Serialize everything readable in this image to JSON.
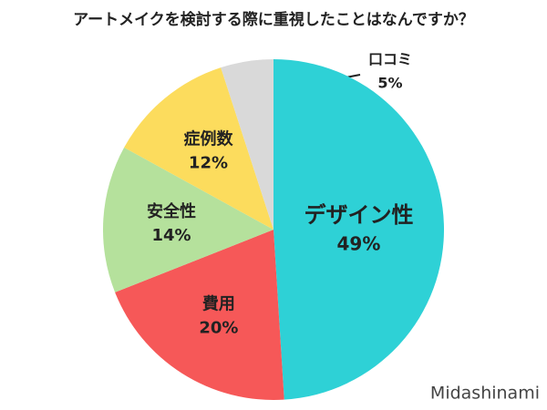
{
  "chart_data": {
    "type": "pie",
    "title": "アートメイクを検討する際に重視したことはなんですか？",
    "categories": [
      "デザイン性",
      "費用",
      "安全性",
      "症例数",
      "口コミ"
    ],
    "values": [
      49,
      20,
      14,
      12,
      5
    ],
    "value_labels": [
      "49%",
      "20%",
      "14%",
      "12%",
      "5%"
    ],
    "colors": [
      "#2ed1d6",
      "#f65858",
      "#b5e19c",
      "#fcdc5d",
      "#d9d9d9"
    ],
    "watermark": "Midashinami"
  }
}
